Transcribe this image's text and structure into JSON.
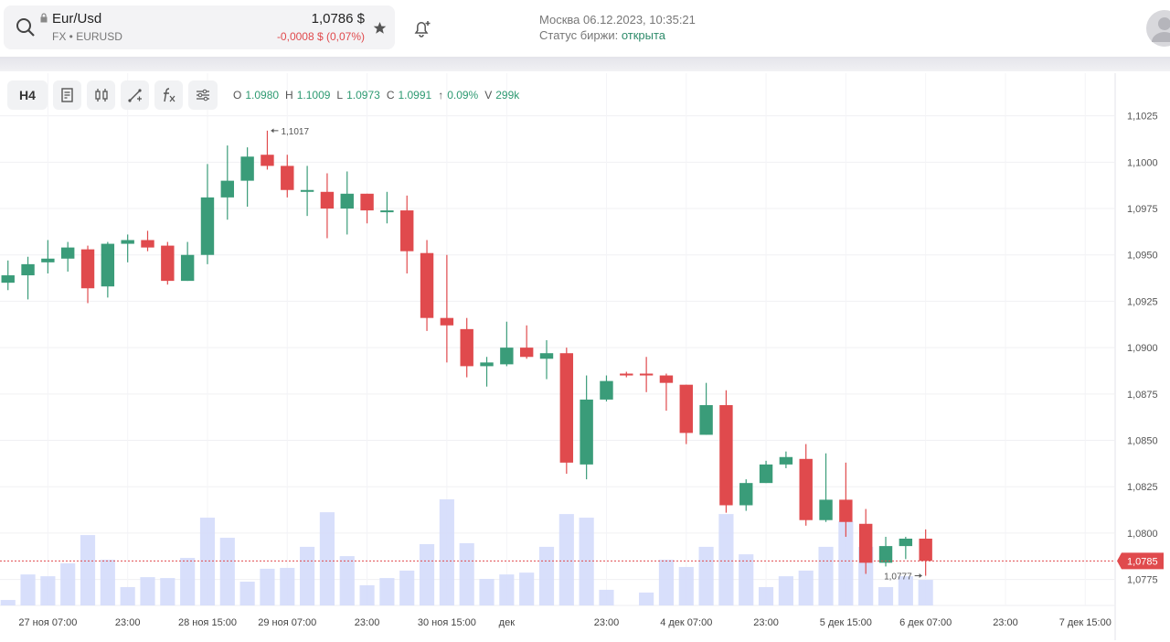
{
  "header": {
    "symbol": "Eur/Usd",
    "exchange": "FX • EURUSD",
    "price": "1,0786 $",
    "change": "-0,0008 $ (0,07%)",
    "location_time": "Москва 06.12.2023, 10:35:21",
    "status_label": "Статус биржи:",
    "status_value": "открыта"
  },
  "toolbar": {
    "interval": "H4",
    "ohlc": [
      {
        "key": "O",
        "value": "1.0980"
      },
      {
        "key": "H",
        "value": "1.1009"
      },
      {
        "key": "L",
        "value": "1.0973"
      },
      {
        "key": "C",
        "value": "1.0991"
      },
      {
        "key": "↑",
        "value": "0.09%"
      },
      {
        "key": "V",
        "value": "299k"
      }
    ]
  },
  "chart_data": {
    "type": "candlestick",
    "open": [
      1.0935,
      1.0939,
      1.0946,
      1.0948,
      1.0953,
      1.0933,
      1.0956,
      1.0958,
      1.0955,
      1.0936,
      1.095,
      1.0981,
      1.099,
      1.1004,
      1.0998,
      1.0984,
      1.0984,
      1.0975,
      1.0983,
      1.0973,
      1.0974,
      1.0951,
      1.0916,
      1.091,
      1.089,
      1.0891,
      1.09,
      1.0894,
      1.0897,
      1.0837,
      1.0872,
      1.0886,
      1.0886,
      1.0885,
      1.088,
      1.0853,
      1.0869,
      1.0815,
      1.0827,
      1.0837,
      1.084,
      1.0807,
      1.0818,
      1.0805,
      1.0784,
      1.0793,
      1.0797
    ],
    "high": [
      1.0947,
      1.0949,
      1.0958,
      1.0957,
      1.0955,
      1.0957,
      1.0961,
      1.0963,
      1.0957,
      1.0957,
      1.0999,
      1.1009,
      1.1008,
      1.1017,
      1.1004,
      1.0998,
      1.0994,
      1.0995,
      1.0983,
      1.0984,
      1.0982,
      1.0958,
      1.095,
      1.0916,
      1.0895,
      1.0914,
      1.0912,
      1.0904,
      1.09,
      1.0885,
      1.0885,
      1.0887,
      1.0895,
      1.0886,
      1.088,
      1.0881,
      1.0877,
      1.0829,
      1.0839,
      1.0844,
      1.0848,
      1.0843,
      1.0838,
      1.0813,
      1.0798,
      1.0798,
      1.0802
    ],
    "low": [
      1.0931,
      1.0926,
      1.094,
      1.0941,
      1.0924,
      1.0927,
      1.0946,
      1.0952,
      1.0934,
      1.0936,
      1.0945,
      1.0969,
      1.0976,
      1.0996,
      1.0981,
      1.0971,
      1.0959,
      1.0961,
      1.0967,
      1.0967,
      1.094,
      1.0909,
      1.0892,
      1.0884,
      1.0879,
      1.089,
      1.0894,
      1.0883,
      1.0832,
      1.0829,
      1.0871,
      1.0884,
      1.0876,
      1.0866,
      1.0848,
      1.0853,
      1.0811,
      1.0812,
      1.0827,
      1.0835,
      1.0804,
      1.0806,
      1.0798,
      1.0778,
      1.0782,
      1.0786,
      1.0777
    ],
    "close": [
      1.0939,
      1.0945,
      1.0948,
      1.0954,
      1.0932,
      1.0956,
      1.0958,
      1.0954,
      1.0936,
      1.095,
      1.0981,
      1.099,
      1.1003,
      1.0998,
      1.0985,
      1.0985,
      1.0975,
      1.0983,
      1.0974,
      1.0974,
      1.0952,
      1.0916,
      1.0912,
      1.089,
      1.0892,
      1.09,
      1.0895,
      1.0897,
      1.0838,
      1.0872,
      1.0882,
      1.0885,
      1.0885,
      1.0881,
      1.0854,
      1.0869,
      1.0815,
      1.0827,
      1.0837,
      1.0841,
      1.0807,
      1.0818,
      1.0806,
      1.0784,
      1.0793,
      1.0797,
      1.0785
    ],
    "volume": [
      24,
      137,
      129,
      186,
      311,
      202,
      81,
      125,
      121,
      210,
      388,
      299,
      105,
      162,
      166,
      259,
      412,
      218,
      89,
      121,
      154,
      271,
      469,
      275,
      117,
      137,
      145,
      259,
      404,
      388,
      69,
      0,
      57,
      202,
      170,
      259,
      404,
      226,
      81,
      129,
      154,
      259,
      372,
      259,
      81,
      129,
      113
    ],
    "up_color": "#3a9c79",
    "down_color": "#e04a4d",
    "volume_color": "#d4dbfb",
    "xlim": [
      -0.4,
      55.5
    ],
    "xticks": [
      {
        "value": 2,
        "label": "27 ноя 07:00"
      },
      {
        "value": 6,
        "label": "23:00"
      },
      {
        "value": 10,
        "label": "28 ноя 15:00"
      },
      {
        "value": 14,
        "label": "29 ноя 07:00"
      },
      {
        "value": 18,
        "label": "23:00"
      },
      {
        "value": 22,
        "label": "30 ноя 15:00"
      },
      {
        "value": 25,
        "label": "дек"
      },
      {
        "value": 30,
        "label": "23:00"
      },
      {
        "value": 34,
        "label": "4 дек 07:00"
      },
      {
        "value": 38,
        "label": "23:00"
      },
      {
        "value": 42,
        "label": "5 дек 15:00"
      },
      {
        "value": 46,
        "label": "6 дек 07:00"
      },
      {
        "value": 50,
        "label": "23:00"
      },
      {
        "value": 54,
        "label": "7 дек 15:00"
      }
    ],
    "ylim": [
      1.0761,
      1.1048
    ],
    "yticks": [
      {
        "value": 1.0775,
        "label": "1,0775"
      },
      {
        "value": 1.08,
        "label": "1,0800"
      },
      {
        "value": 1.0825,
        "label": "1,0825"
      },
      {
        "value": 1.085,
        "label": "1,0850"
      },
      {
        "value": 1.0875,
        "label": "1,0875"
      },
      {
        "value": 1.09,
        "label": "1,0900"
      },
      {
        "value": 1.0925,
        "label": "1,0925"
      },
      {
        "value": 1.095,
        "label": "1,0950"
      },
      {
        "value": 1.0975,
        "label": "1,0975"
      },
      {
        "value": 1.1,
        "label": "1,1000"
      },
      {
        "value": 1.1025,
        "label": "1,1025"
      }
    ],
    "grid": true,
    "last_price": {
      "value": 1.0785,
      "label": "1,0785"
    },
    "annotations": [
      {
        "x": 13,
        "value": 1.1017,
        "label": "1,1017",
        "side": "right"
      },
      {
        "x": 46,
        "value": 1.0777,
        "label": "1,0777",
        "side": "left"
      }
    ]
  }
}
